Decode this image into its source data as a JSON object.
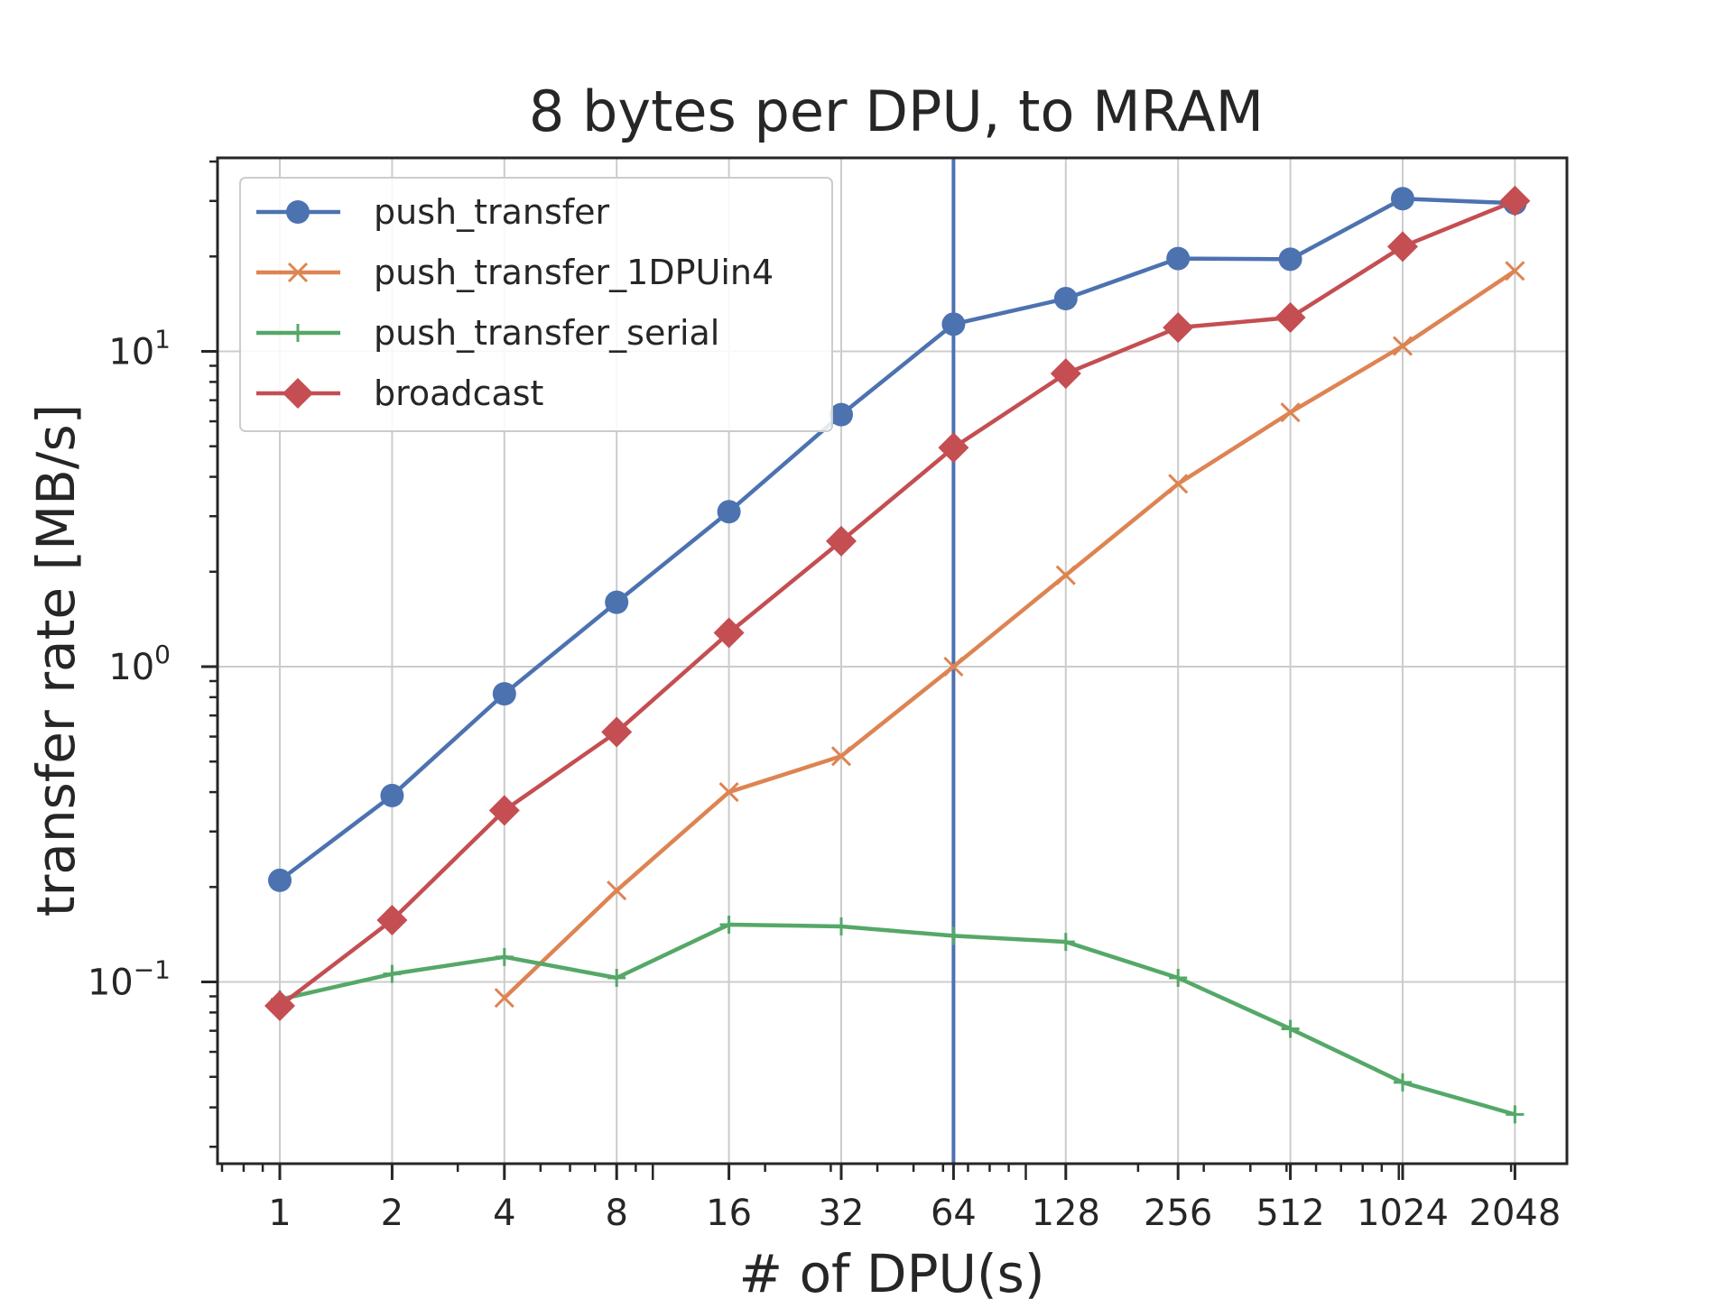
{
  "chart_data": {
    "type": "line",
    "title": "8 bytes per DPU, to MRAM",
    "xlabel": "# of DPU(s)",
    "ylabel": "transfer rate [MB/s]",
    "xscale": "log2",
    "yscale": "log10",
    "x": [
      1,
      2,
      4,
      8,
      16,
      32,
      64,
      128,
      256,
      512,
      1024,
      2048
    ],
    "x_tick_labels": [
      "1",
      "2",
      "4",
      "8",
      "16",
      "32",
      "64",
      "128",
      "256",
      "512",
      "1024",
      "2048"
    ],
    "y_tick_labels": [
      {
        "base": "10",
        "exp": "−1",
        "value": 0.1
      },
      {
        "base": "10",
        "exp": "0",
        "value": 1
      },
      {
        "base": "10",
        "exp": "1",
        "value": 10
      }
    ],
    "ylim": [
      0.028,
      45
    ],
    "grid": true,
    "legend_position": "upper-left",
    "vline_x": 64,
    "vline_color": "#4c72b0",
    "series": [
      {
        "name": "push_transfer",
        "color": "#4c72b0",
        "marker": "circle",
        "x": [
          1,
          2,
          4,
          8,
          16,
          32,
          64,
          128,
          256,
          512,
          1024,
          2048
        ],
        "values": [
          0.21,
          0.39,
          0.82,
          1.6,
          3.1,
          6.3,
          12.2,
          14.7,
          19.7,
          19.6,
          30.5,
          29.5
        ]
      },
      {
        "name": "push_transfer_1DPUin4",
        "color": "#dd8452",
        "marker": "x",
        "x": [
          4,
          8,
          16,
          32,
          64,
          128,
          256,
          512,
          1024,
          2048
        ],
        "values": [
          0.089,
          0.195,
          0.4,
          0.52,
          1.0,
          1.95,
          3.8,
          6.4,
          10.4,
          18.0
        ]
      },
      {
        "name": "push_transfer_serial",
        "color": "#55a868",
        "marker": "plus",
        "x": [
          1,
          2,
          4,
          8,
          16,
          32,
          64,
          128,
          256,
          512,
          1024,
          2048
        ],
        "values": [
          0.088,
          0.106,
          0.12,
          0.103,
          0.152,
          0.15,
          0.14,
          0.134,
          0.103,
          0.071,
          0.048,
          0.038
        ]
      },
      {
        "name": "broadcast",
        "color": "#c44e52",
        "marker": "diamond",
        "x": [
          1,
          2,
          4,
          8,
          16,
          32,
          64,
          128,
          256,
          512,
          1024,
          2048
        ],
        "values": [
          0.084,
          0.157,
          0.35,
          0.62,
          1.28,
          2.5,
          4.95,
          8.5,
          11.9,
          12.8,
          21.5,
          30.0
        ]
      }
    ]
  }
}
